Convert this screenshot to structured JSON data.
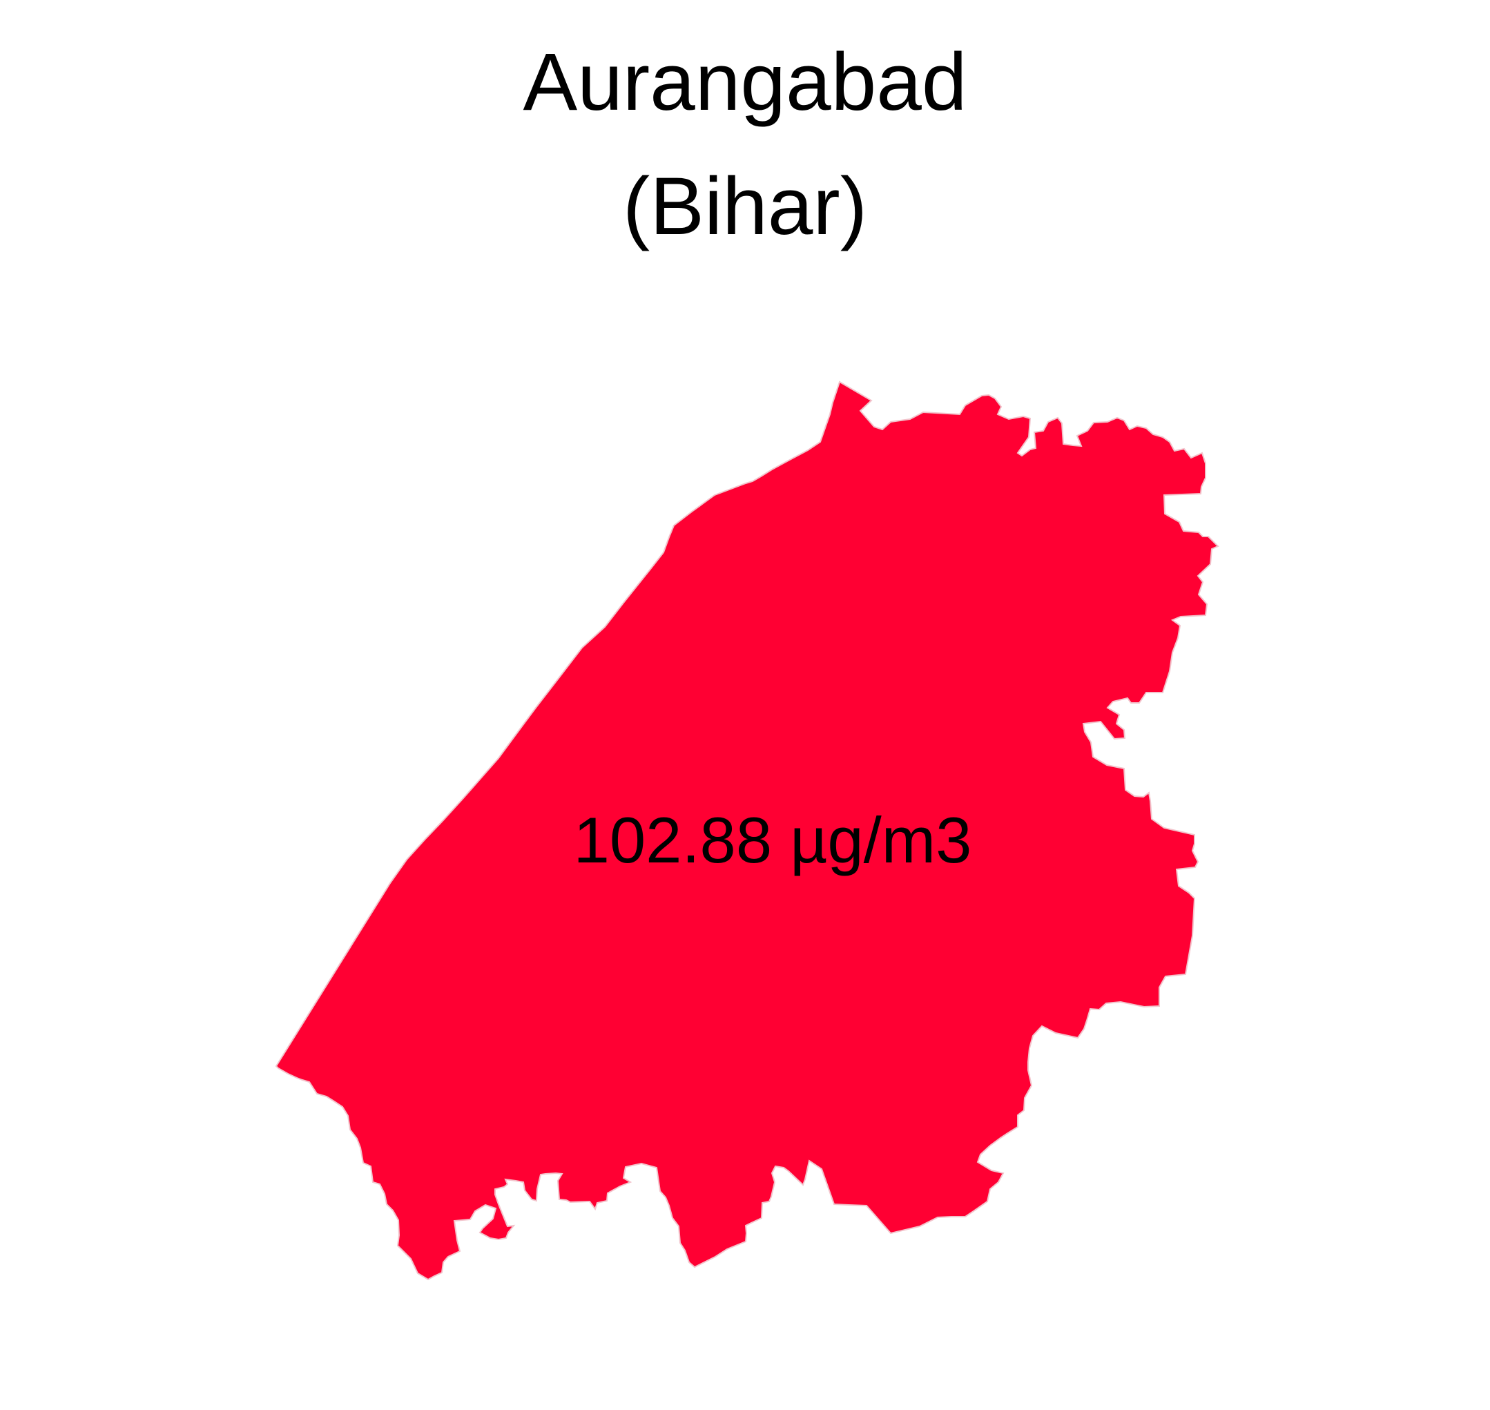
{
  "map": {
    "title": "Aurangabad",
    "subtitle": "(Bihar)",
    "value_label": "102.88 µg/m3",
    "region_fill": "#ff0033",
    "background": "#ffffff"
  }
}
